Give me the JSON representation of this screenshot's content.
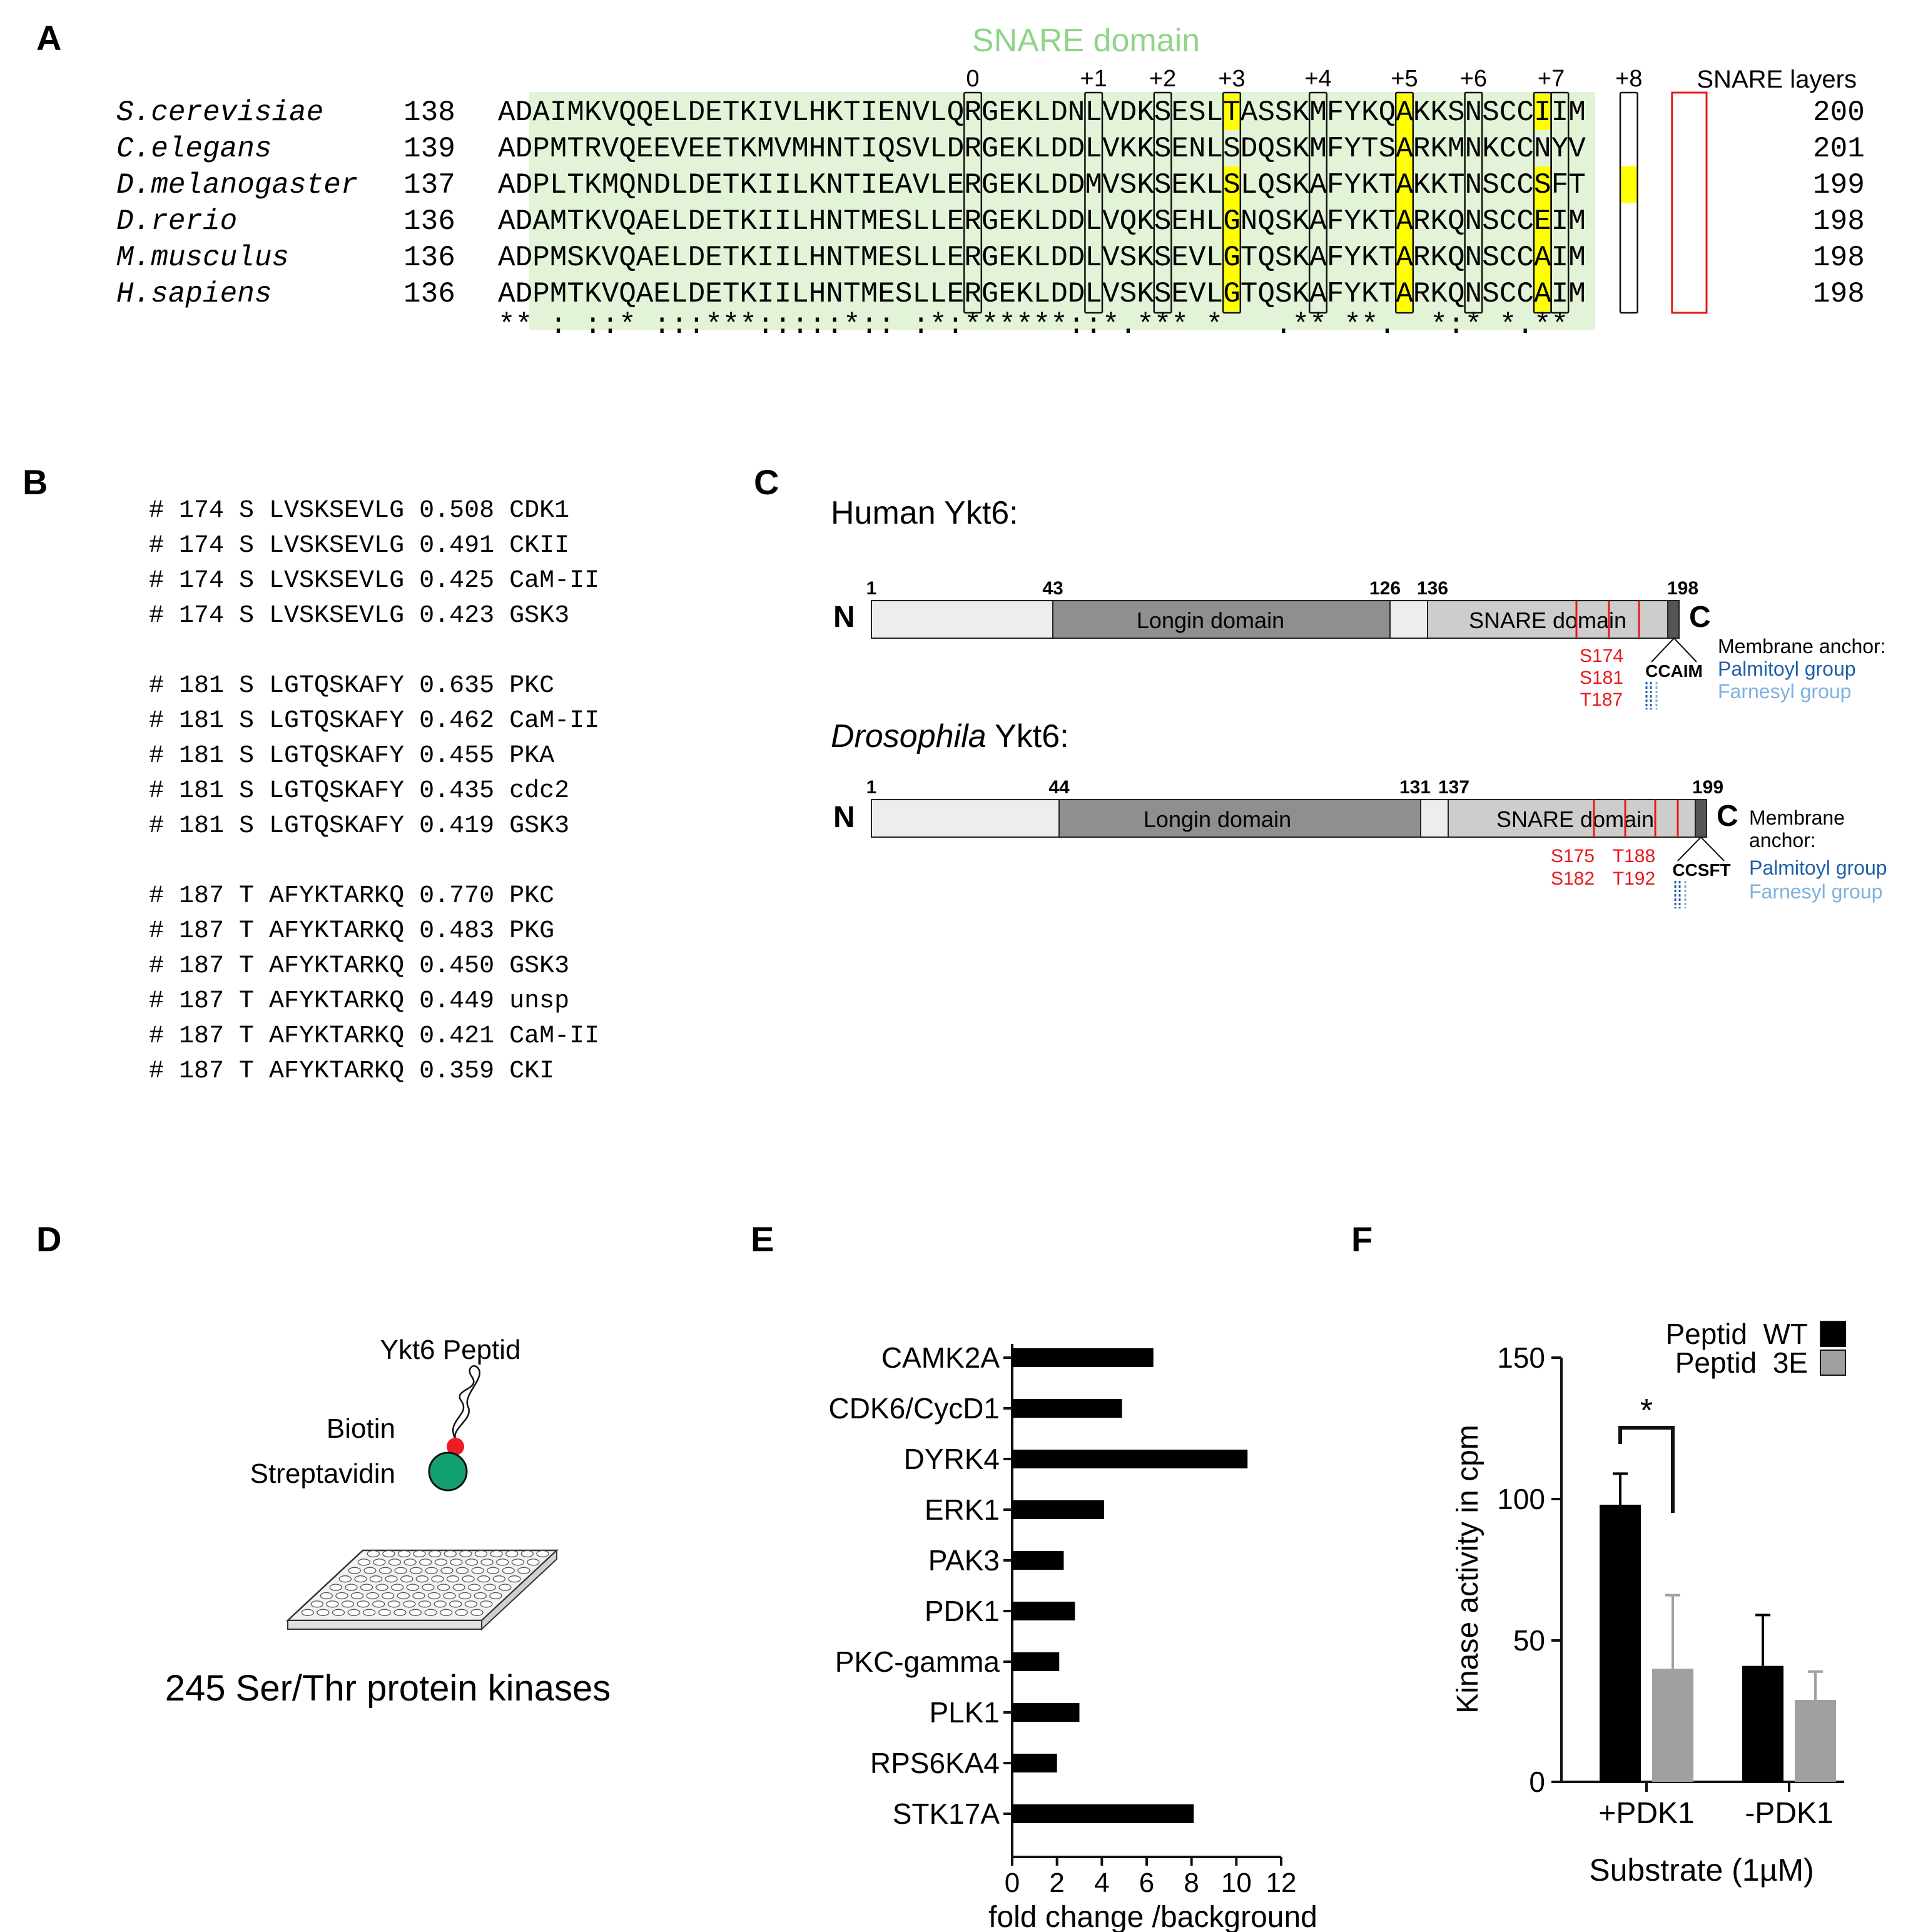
{
  "panel_labels": {
    "a": "A",
    "b": "B",
    "c": "C",
    "d": "D",
    "e": "E",
    "f": "F"
  },
  "panel_a": {
    "domain_title": "SNARE domain",
    "layers_label": "SNARE layers",
    "layer_numbers": [
      "0",
      "+1",
      "+2",
      "+3",
      "+4",
      "+5",
      "+6",
      "+7",
      "+8"
    ],
    "rows": [
      {
        "species": "S.cerevisiae",
        "start": "138",
        "seq": "ADAIMKVQQELDETKIVLHKTIENVLQRGEKLDNLVDKSESLTASSKMFYKQAKKSNSCCIIM",
        "end": "200"
      },
      {
        "species": "C.elegans",
        "start": "139",
        "seq": "ADPMTRVQEEVEETKMVMHNTIQSVLDRGEKLDDLVKKSENLSDQSKMFYTSARKMNKCCNYV",
        "end": "201"
      },
      {
        "species": "D.melanogaster",
        "start": "137",
        "seq": "ADPLTKMQNDLDETKIILKNTIEAVLERGEKLDDMVSKSEKLSLQSKAFYKTAKKTNSCCSFT",
        "end": "199"
      },
      {
        "species": "D.rerio",
        "start": "136",
        "seq": "ADAMTKVQAELDETKIILHNTMESLLERGEKLDDLVQKSEHLGNQSKAFYKTARKQNSCCEIM",
        "end": "198"
      },
      {
        "species": "M.musculus",
        "start": "136",
        "seq": "ADPMSKVQAELDETKIILHNTMESLLERGEKLDDLVSKSEVLGTQSKAFYKTARKQNSCCAIM",
        "end": "198"
      },
      {
        "species": "H.sapiens",
        "start": "136",
        "seq": "ADPMTKVQAELDETKIILHNTMESLLERGEKLDDLVSKSEVLGTQSKAFYKTARKQNSCCAIM",
        "end": "198"
      }
    ],
    "conservation": "** : ::* :::***:::::*:: :*:******::*.*** *   .** **.  *:* *.**",
    "colors": {
      "domain_bg": "#e3f3d8",
      "domain_text": "#8fd488",
      "highlight": "#ffff00",
      "anchor_box": "#e8191c"
    }
  },
  "panel_b": {
    "groups": [
      [
        {
          "pos": "174",
          "aa": "S",
          "seq": "LVSKSEVLG",
          "score": "0.508",
          "kinase": "CDK1"
        },
        {
          "pos": "174",
          "aa": "S",
          "seq": "LVSKSEVLG",
          "score": "0.491",
          "kinase": "CKII"
        },
        {
          "pos": "174",
          "aa": "S",
          "seq": "LVSKSEVLG",
          "score": "0.425",
          "kinase": "CaM-II"
        },
        {
          "pos": "174",
          "aa": "S",
          "seq": "LVSKSEVLG",
          "score": "0.423",
          "kinase": "GSK3"
        }
      ],
      [
        {
          "pos": "181",
          "aa": "S",
          "seq": "LGTQSKAFY",
          "score": "0.635",
          "kinase": "PKC"
        },
        {
          "pos": "181",
          "aa": "S",
          "seq": "LGTQSKAFY",
          "score": "0.462",
          "kinase": "CaM-II"
        },
        {
          "pos": "181",
          "aa": "S",
          "seq": "LGTQSKAFY",
          "score": "0.455",
          "kinase": "PKA"
        },
        {
          "pos": "181",
          "aa": "S",
          "seq": "LGTQSKAFY",
          "score": "0.435",
          "kinase": "cdc2"
        },
        {
          "pos": "181",
          "aa": "S",
          "seq": "LGTQSKAFY",
          "score": "0.419",
          "kinase": "GSK3"
        }
      ],
      [
        {
          "pos": "187",
          "aa": "T",
          "seq": "AFYKTARKQ",
          "score": "0.770",
          "kinase": "PKC"
        },
        {
          "pos": "187",
          "aa": "T",
          "seq": "AFYKTARKQ",
          "score": "0.483",
          "kinase": "PKG"
        },
        {
          "pos": "187",
          "aa": "T",
          "seq": "AFYKTARKQ",
          "score": "0.450",
          "kinase": "GSK3"
        },
        {
          "pos": "187",
          "aa": "T",
          "seq": "AFYKTARKQ",
          "score": "0.449",
          "kinase": "unsp"
        },
        {
          "pos": "187",
          "aa": "T",
          "seq": "AFYKTARKQ",
          "score": "0.421",
          "kinase": "CaM-II"
        },
        {
          "pos": "187",
          "aa": "T",
          "seq": "AFYKTARKQ",
          "score": "0.359",
          "kinase": "CKI"
        }
      ]
    ]
  },
  "panel_c": {
    "human": {
      "title": "Human Ykt6:",
      "n_label": "N",
      "c_label": "C",
      "positions": [
        "1",
        "43",
        "126",
        "136",
        "198"
      ],
      "longin": "Longin domain",
      "snare": "SNARE domain",
      "sites": [
        "S174",
        "S181",
        "T187"
      ],
      "motif": "CCAIM",
      "anchor_title": "Membrane anchor:",
      "palmitoyl": "Palmitoyl group",
      "farnesyl": "Farnesyl group"
    },
    "fly": {
      "title_italic": "Drosophila",
      "title_rest": " Ykt6:",
      "n_label": "N",
      "c_label": "C",
      "positions": [
        "1",
        "44",
        "131",
        "137",
        "199"
      ],
      "longin": "Longin domain",
      "snare": "SNARE domain",
      "sites_left": [
        "S175",
        "S182"
      ],
      "sites_right": [
        "T188",
        "T192"
      ],
      "motif": "CCSFT",
      "anchor_title_1": "Membrane",
      "anchor_title_2": "anchor:",
      "palmitoyl": "Palmitoyl group",
      "farnesyl": "Farnesyl group"
    },
    "colors": {
      "site": "#e8191c",
      "palmitoyl": "#1f5fa8",
      "farnesyl": "#7fb2df"
    }
  },
  "panel_d": {
    "peptide": "Ykt6 Peptid",
    "biotin": "Biotin",
    "streptavidin": "Streptavidin",
    "caption": "245 Ser/Thr protein kinases",
    "colors": {
      "biotin": "#ee1c24",
      "streptavidin": "#12a070"
    }
  },
  "chart_data": [
    {
      "type": "bar",
      "orientation": "horizontal",
      "categories": [
        "CAMK2A",
        "CDK6/CycD1",
        "DYRK4",
        "ERK1",
        "PAK3",
        "PDK1",
        "PKC-gamma",
        "PLK1",
        "RPS6KA4",
        "STK17A"
      ],
      "values": [
        6.3,
        4.9,
        10.5,
        4.1,
        2.3,
        2.8,
        2.1,
        3.0,
        2.0,
        8.1
      ],
      "xlabel": "fold change /background",
      "xlim": [
        0,
        12
      ],
      "xticks": [
        "0",
        "2",
        "4",
        "6",
        "8",
        "10",
        "12"
      ],
      "grid": false
    },
    {
      "type": "bar",
      "categories": [
        "+PDK1",
        "-PDK1"
      ],
      "series": [
        {
          "name": "Peptid  WT",
          "values": [
            98,
            41
          ],
          "error": [
            11,
            18
          ],
          "color": "#000000"
        },
        {
          "name": "Peptid  3E",
          "values": [
            40,
            29
          ],
          "error": [
            26,
            10
          ],
          "color": "#a0a0a0"
        }
      ],
      "xlabel": "Substrate (1µM)",
      "ylabel": "Kinase activity in cpm",
      "ylim": [
        0,
        150
      ],
      "yticks": [
        "0",
        "50",
        "100",
        "150"
      ],
      "significance": "*",
      "legend": "top-right",
      "grid": false
    }
  ]
}
